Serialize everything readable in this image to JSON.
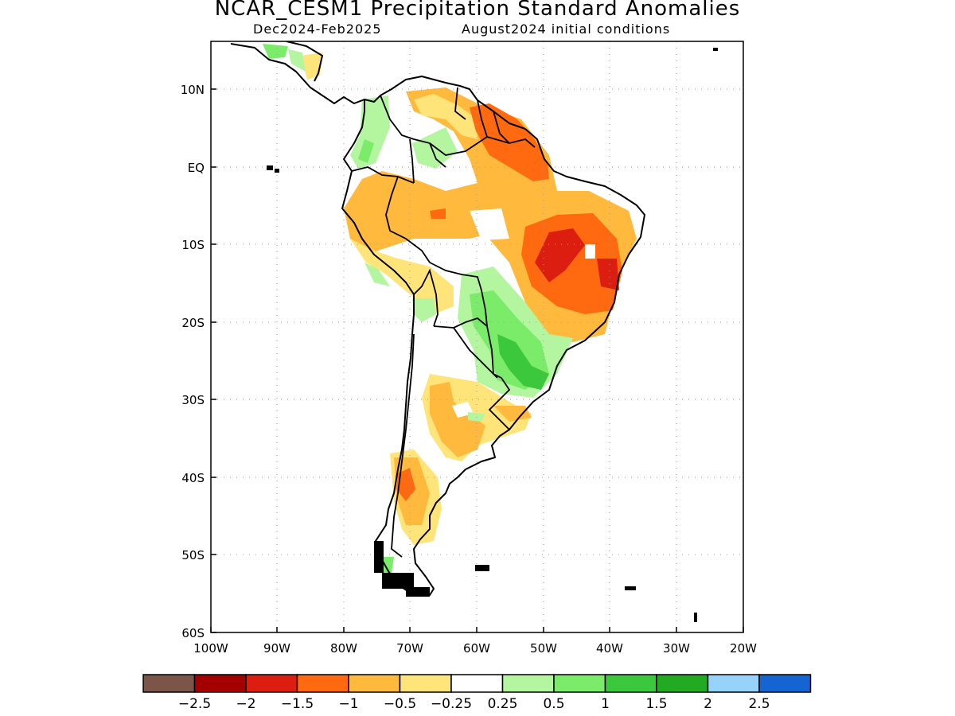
{
  "header": {
    "title": "NCAR_CESM1 Precipitation Standard Anomalies",
    "period": "Dec2024-Feb2025",
    "initial_conditions": "August2024 initial conditions"
  },
  "axes": {
    "lat_ticks": [
      "10N",
      "EQ",
      "10S",
      "20S",
      "30S",
      "40S",
      "50S",
      "60S"
    ],
    "lon_ticks": [
      "100W",
      "90W",
      "80W",
      "70W",
      "60W",
      "50W",
      "40W",
      "30W",
      "20W"
    ],
    "lat_range": [
      -60,
      15.5
    ],
    "lon_range": [
      -100,
      -20
    ],
    "grid": true
  },
  "legend": {
    "colors": [
      "#7a5548",
      "#a50000",
      "#dc1e10",
      "#ff6a10",
      "#ffb93c",
      "#ffe47a",
      "#ffffff",
      "#b4f5a0",
      "#7aec6a",
      "#3cc83c",
      "#22aa22",
      "#96d2fa",
      "#1464d2"
    ],
    "labels": [
      "-2.5",
      "-2",
      "-1.5",
      "-1",
      "-0.5",
      "-0.25",
      "0.25",
      "0.5",
      "1",
      "1.5",
      "2",
      "2.5"
    ]
  },
  "map_features": {
    "land_outline": "South America with national borders",
    "anomaly_regions": [
      {
        "region": "NE Brazil",
        "category": "-1.5"
      },
      {
        "region": "Guianas / N Brazil",
        "category": "-1"
      },
      {
        "region": "W Amazon",
        "category": "-0.5"
      },
      {
        "region": "Mato Grosso / Paraguay",
        "category": "1"
      },
      {
        "region": "S Brazil",
        "category": "1.5"
      },
      {
        "region": "N Patagonia",
        "category": "-1"
      },
      {
        "region": "Central Argentina",
        "category": "-0.5"
      },
      {
        "region": "Colombia / Venezuela",
        "category": "0.5"
      }
    ]
  }
}
